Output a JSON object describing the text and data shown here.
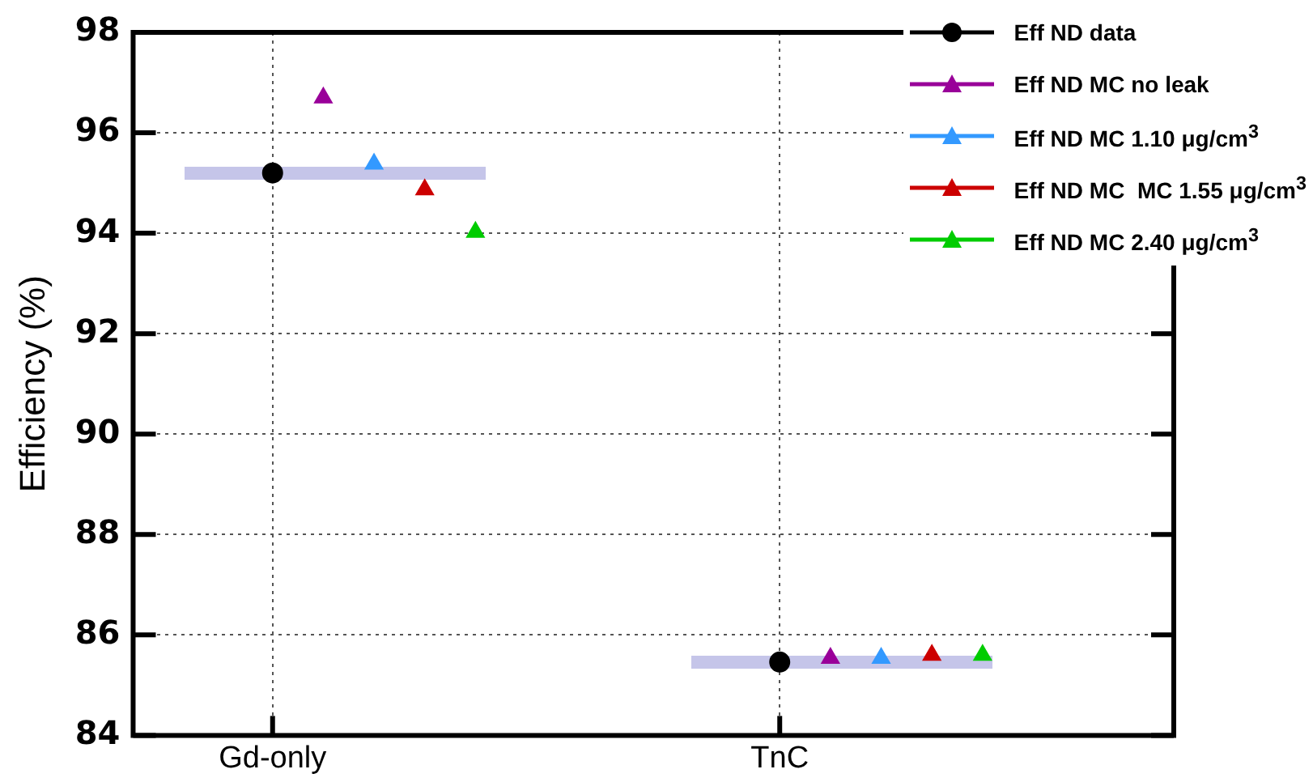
{
  "chart_data": {
    "type": "scatter",
    "ylabel": "Efficiency (%)",
    "categories": [
      "Gd-only",
      "TnC"
    ],
    "ylim": [
      84,
      98
    ],
    "yticks": [
      84,
      86,
      88,
      90,
      92,
      94,
      96,
      98
    ],
    "grid": true,
    "legend": "top right",
    "series": [
      {
        "name": "Eff ND data",
        "color": "#000000",
        "marker": "circle",
        "values": [
          95.2,
          85.46
        ]
      },
      {
        "name": "Eff ND MC no leak",
        "color": "#990099",
        "marker": "triangle",
        "values": [
          96.7,
          85.54
        ]
      },
      {
        "name": "Eff ND MC 1.10 μg/cm$^{3}$",
        "color": "#3399ff",
        "marker": "triangle",
        "values": [
          95.38,
          85.54
        ]
      },
      {
        "name": "Eff ND MC  MC 1.55 μg/cm$^{3}$",
        "color": "#cc0000",
        "marker": "triangle",
        "values": [
          94.87,
          85.6
        ]
      },
      {
        "name": "Eff ND MC 2.40 μg/cm$^{3}$",
        "color": "#00cc00",
        "marker": "triangle",
        "values": [
          94.02,
          85.6
        ]
      }
    ]
  }
}
